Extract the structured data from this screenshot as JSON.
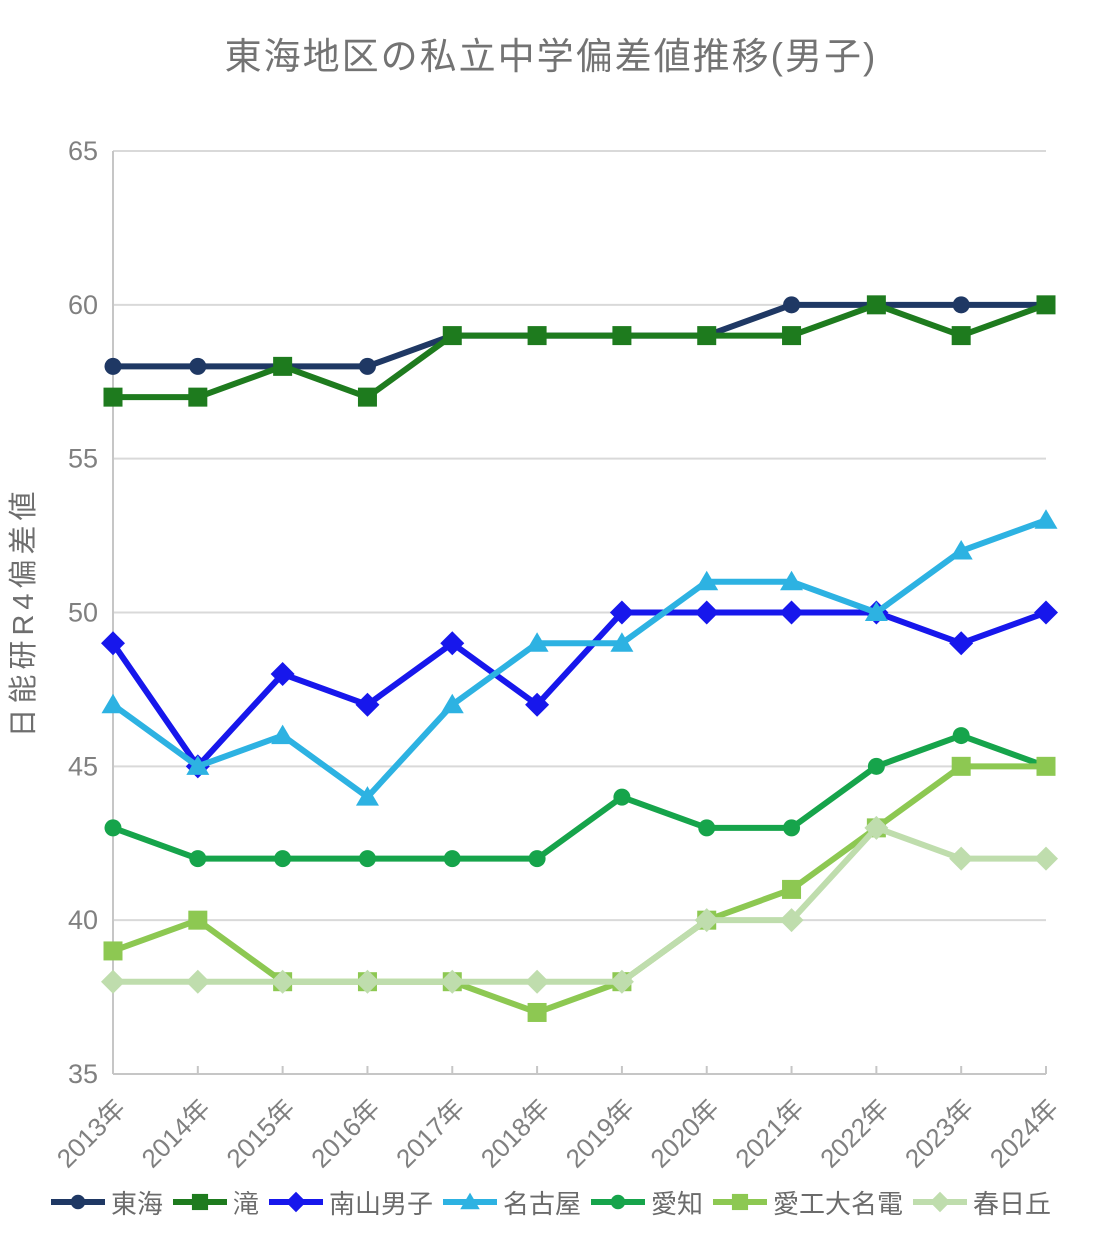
{
  "chart_data": {
    "type": "line",
    "title": "東海地区の私立中学偏差値推移(男子)",
    "ylabel": "日能研R4偏差値",
    "xlabel": "",
    "categories": [
      "2013年",
      "2014年",
      "2015年",
      "2016年",
      "2017年",
      "2018年",
      "2019年",
      "2020年",
      "2021年",
      "2022年",
      "2023年",
      "2024年"
    ],
    "ylim": [
      35,
      65
    ],
    "yticks": [
      35,
      40,
      45,
      50,
      55,
      60,
      65
    ],
    "grid": "horizontal",
    "legend_position": "bottom",
    "series": [
      {
        "name": "東海",
        "color": "#1F3864",
        "marker": "circle",
        "values": [
          58,
          58,
          58,
          58,
          59,
          59,
          59,
          59,
          60,
          60,
          60,
          60
        ]
      },
      {
        "name": "滝",
        "color": "#1E7B1E",
        "marker": "square",
        "values": [
          57,
          57,
          58,
          57,
          59,
          59,
          59,
          59,
          59,
          60,
          59,
          60
        ]
      },
      {
        "name": "南山男子",
        "color": "#1717EC",
        "marker": "diamond",
        "values": [
          49,
          45,
          48,
          47,
          49,
          47,
          50,
          50,
          50,
          50,
          49,
          50
        ]
      },
      {
        "name": "名古屋",
        "color": "#2DB2E2",
        "marker": "triangle",
        "values": [
          47,
          45,
          46,
          44,
          47,
          49,
          49,
          51,
          51,
          50,
          52,
          53
        ]
      },
      {
        "name": "愛知",
        "color": "#16A44B",
        "marker": "circle",
        "values": [
          43,
          42,
          42,
          42,
          42,
          42,
          44,
          43,
          43,
          45,
          46,
          45
        ]
      },
      {
        "name": "愛工大名電",
        "color": "#8DC852",
        "marker": "square",
        "values": [
          39,
          40,
          38,
          38,
          38,
          37,
          38,
          40,
          41,
          43,
          45,
          45
        ]
      },
      {
        "name": "春日丘",
        "color": "#BFDDAD",
        "marker": "diamond",
        "values": [
          38,
          38,
          38,
          38,
          38,
          38,
          38,
          40,
          40,
          43,
          42,
          42
        ]
      }
    ]
  },
  "colors": {
    "background": "#FFFFFF",
    "grid": "#D9D9D9",
    "axis": "#C6C6C6",
    "tick_label": "#808080",
    "title": "#737373",
    "axis_title": "#6E6E6E",
    "legend_text": "#6B6B6B"
  }
}
